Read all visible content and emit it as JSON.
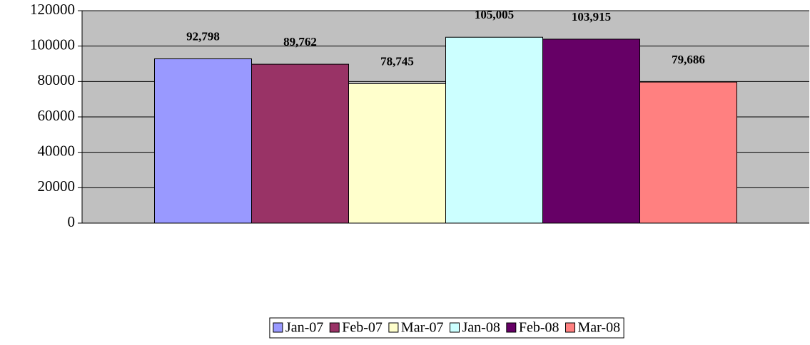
{
  "chart_data": {
    "type": "bar",
    "series": [
      {
        "name": "Jan-07",
        "color": "#9999ff",
        "values": [
          92798
        ],
        "value_labels": [
          "92,798"
        ]
      },
      {
        "name": "Feb-07",
        "color": "#993366",
        "values": [
          89762
        ],
        "value_labels": [
          "89,762"
        ]
      },
      {
        "name": "Mar-07",
        "color": "#ffffcc",
        "values": [
          78745
        ],
        "value_labels": [
          "78,745"
        ]
      },
      {
        "name": "Jan-08",
        "color": "#ccffff",
        "values": [
          105005
        ],
        "value_labels": [
          "105,005"
        ]
      },
      {
        "name": "Feb-08",
        "color": "#660066",
        "values": [
          103915
        ],
        "value_labels": [
          "103,915"
        ]
      },
      {
        "name": "Mar-08",
        "color": "#ff8080",
        "values": [
          79686
        ],
        "value_labels": [
          "79,686"
        ]
      }
    ],
    "ylim": [
      0,
      120000
    ],
    "yticks": [
      0,
      20000,
      40000,
      60000,
      80000,
      100000,
      120000
    ],
    "grid": true,
    "plot_background": "#c0c0c0",
    "legend": "bottom"
  }
}
